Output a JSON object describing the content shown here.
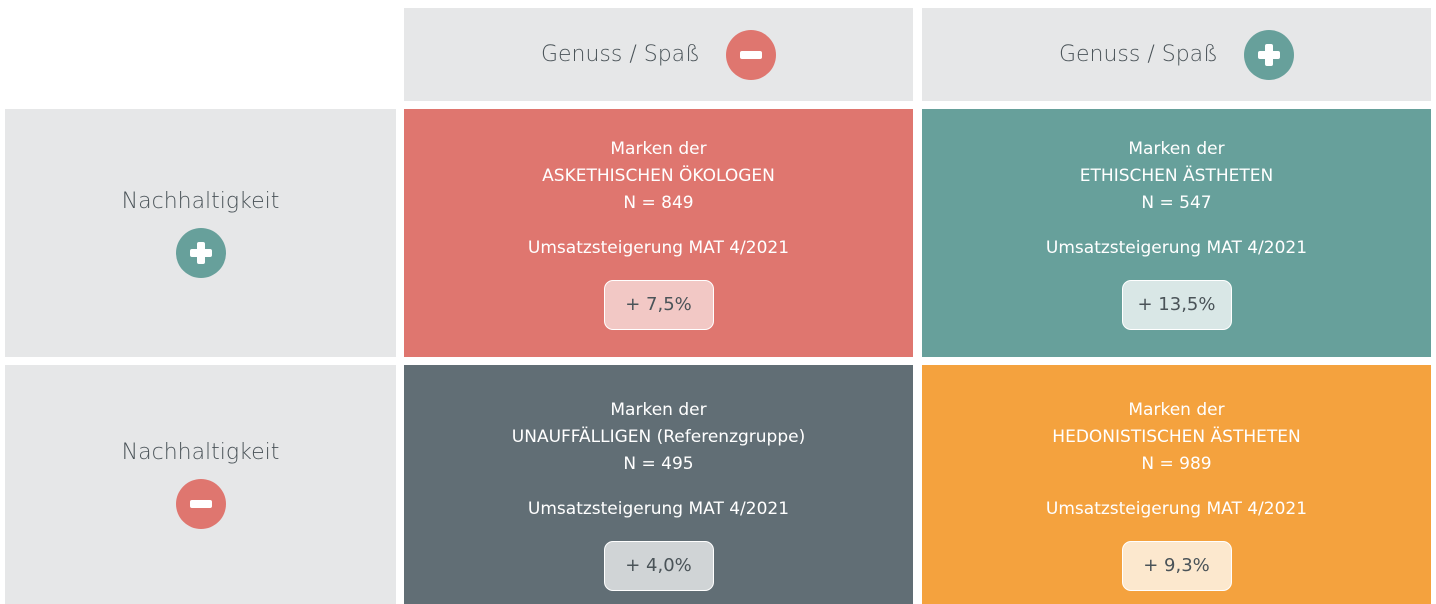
{
  "columns": [
    {
      "label": "Genuss / Spaß"
    },
    {
      "label": "Genuss / Spaß"
    }
  ],
  "rows": [
    {
      "label": "Nachhaltigkeit"
    },
    {
      "label": "Nachhaltigkeit"
    }
  ],
  "cells": [
    [
      {
        "line1": "Marken der",
        "line2": "ASKETHISCHEN ÖKOLOGEN",
        "count": "N = 849",
        "metric": "Umsatzsteigerung MAT 4/2021",
        "value": "+ 7,5%"
      },
      {
        "line1": "Marken der",
        "line2": "ETHISCHEN ÄSTHETEN",
        "count": "N = 547",
        "metric": "Umsatzsteigerung MAT 4/2021",
        "value": "+ 13,5%"
      }
    ],
    [
      {
        "line1": "Marken der",
        "line2": "UNAUFFÄLLIGEN (Referenzgruppe)",
        "count": "N = 495",
        "metric": "Umsatzsteigerung MAT 4/2021",
        "value": "+ 4,0%"
      },
      {
        "line1": "Marken der",
        "line2": "HEDONISTISCHEN ÄSTHETEN",
        "count": "N = 989",
        "metric": "Umsatzsteigerung MAT 4/2021",
        "value": "+ 9,3%"
      }
    ]
  ]
}
